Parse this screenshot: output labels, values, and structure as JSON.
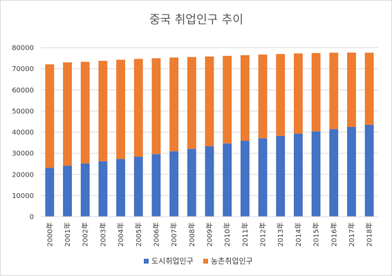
{
  "chart_data": {
    "type": "bar",
    "stacked": true,
    "title": "중국 취업인구 추이",
    "xlabel": "",
    "ylabel": "",
    "categories": [
      "2000年",
      "2001年",
      "2002年",
      "2003年",
      "2004年",
      "2005年",
      "2006年",
      "2007年",
      "2008年",
      "2009年",
      "2010年",
      "2011年",
      "2012年",
      "2013年",
      "2014年",
      "2015年",
      "2016年",
      "2017年",
      "2018年"
    ],
    "series": [
      {
        "name": "도시취업인구",
        "color": "#4472c4",
        "values": [
          23150,
          24120,
          25160,
          26230,
          27290,
          28390,
          29630,
          30950,
          32100,
          33320,
          34690,
          35910,
          37100,
          38240,
          39310,
          40410,
          41430,
          42460,
          43420
        ]
      },
      {
        "name": "농촌취업인구",
        "color": "#ed7d31",
        "values": [
          48930,
          48910,
          48120,
          47500,
          46970,
          46260,
          45350,
          44370,
          43460,
          42500,
          41420,
          40510,
          39600,
          38740,
          37950,
          37040,
          36170,
          35180,
          34170
        ]
      }
    ],
    "ylim": [
      0,
      80000
    ],
    "yticks": [
      0,
      10000,
      20000,
      30000,
      40000,
      50000,
      60000,
      70000,
      80000
    ],
    "grid": true,
    "legend": "bottom"
  }
}
